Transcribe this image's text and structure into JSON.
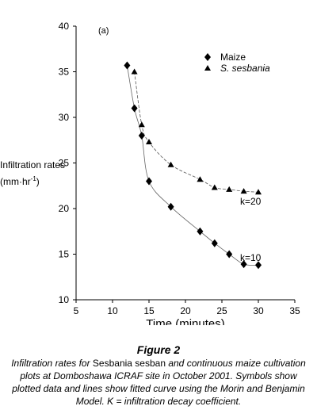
{
  "chart_data": {
    "type": "scatter",
    "panel_label": "(a)",
    "xlabel": "Time (minutes)",
    "ylabel_main": "Infiltration rates",
    "ylabel_unit_pre": "(mm·hr",
    "ylabel_unit_sup": "-1",
    "ylabel_unit_post": ")",
    "xlim": [
      5,
      35
    ],
    "ylim": [
      10,
      40
    ],
    "xticks": [
      5,
      10,
      15,
      20,
      25,
      30,
      35
    ],
    "yticks": [
      10,
      15,
      20,
      25,
      30,
      35,
      40
    ],
    "legend_position": "top-right",
    "grid": false,
    "series": [
      {
        "name": "Maize",
        "marker": "diamond",
        "color": "#000000",
        "x": [
          12,
          13,
          14,
          15,
          18,
          22,
          24,
          26,
          28,
          30
        ],
        "y": [
          35.7,
          31.0,
          28.0,
          23.0,
          20.2,
          17.5,
          16.2,
          15.0,
          13.9,
          13.8
        ],
        "curve_label": "k=10"
      },
      {
        "name": "S. sesbania",
        "marker": "triangle",
        "color": "#000000",
        "x": [
          13,
          14,
          15,
          18,
          22,
          24,
          26,
          28,
          30
        ],
        "y": [
          35.0,
          29.2,
          27.3,
          24.8,
          23.2,
          22.3,
          22.1,
          21.9,
          21.8
        ],
        "curve_label": "k=20"
      }
    ]
  },
  "caption": {
    "figure_label": "Figure 2",
    "text_1": "Infiltration rates for ",
    "text_species": "Sesbania sesban",
    "text_2": " and continuous maize cultivation plots at Domboshawa ICRAF site in October 2001. Symbols show plotted data and lines show fitted curve using the Morin and Benjamin Model. K = infiltration decay coefficient."
  }
}
